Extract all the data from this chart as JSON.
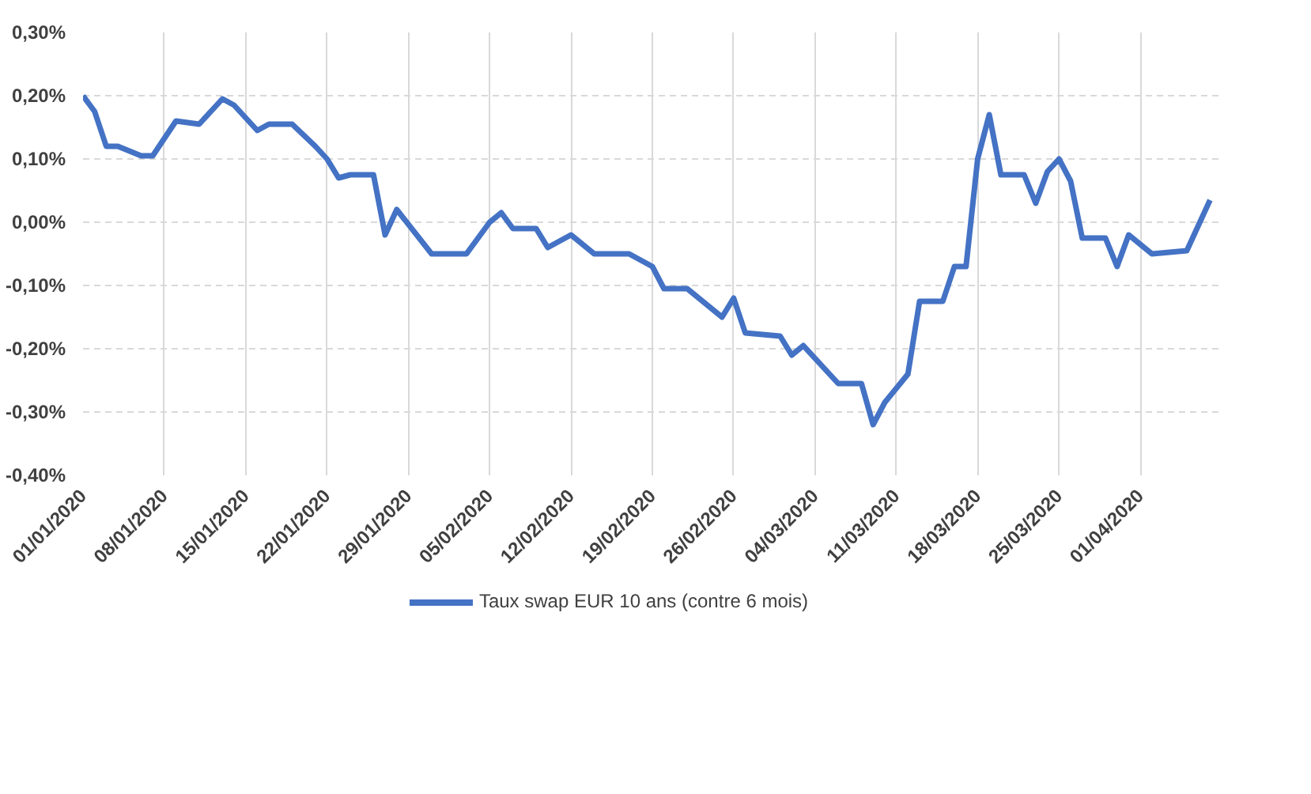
{
  "chart_data": {
    "type": "line",
    "x": [
      "2020-01-01",
      "2020-01-02",
      "2020-01-03",
      "2020-01-04",
      "2020-01-06",
      "2020-01-07",
      "2020-01-09",
      "2020-01-11",
      "2020-01-13",
      "2020-01-14",
      "2020-01-16",
      "2020-01-17",
      "2020-01-19",
      "2020-01-21",
      "2020-01-22",
      "2020-01-23",
      "2020-01-24",
      "2020-01-26",
      "2020-01-27",
      "2020-01-28",
      "2020-01-31",
      "2020-02-03",
      "2020-02-05",
      "2020-02-06",
      "2020-02-07",
      "2020-02-09",
      "2020-02-10",
      "2020-02-12",
      "2020-02-14",
      "2020-02-17",
      "2020-02-19",
      "2020-02-20",
      "2020-02-22",
      "2020-02-25",
      "2020-02-26",
      "2020-02-27",
      "2020-03-01",
      "2020-03-02",
      "2020-03-03",
      "2020-03-06",
      "2020-03-08",
      "2020-03-09",
      "2020-03-10",
      "2020-03-12",
      "2020-03-13",
      "2020-03-15",
      "2020-03-16",
      "2020-03-17",
      "2020-03-18",
      "2020-03-19",
      "2020-03-20",
      "2020-03-22",
      "2020-03-23",
      "2020-03-24",
      "2020-03-25",
      "2020-03-26",
      "2020-03-27",
      "2020-03-29",
      "2020-03-30",
      "2020-03-31",
      "2020-04-02",
      "2020-04-05",
      "2020-04-07"
    ],
    "series": [
      {
        "name": "Taux swap EUR 10 ans (contre 6 mois)",
        "color": "#4472c4",
        "values": [
          0.2,
          0.175,
          0.12,
          0.12,
          0.105,
          0.105,
          0.16,
          0.155,
          0.195,
          0.185,
          0.145,
          0.155,
          0.155,
          0.12,
          0.1,
          0.07,
          0.075,
          0.075,
          -0.02,
          0.02,
          -0.05,
          -0.05,
          0.0,
          0.015,
          -0.01,
          -0.01,
          -0.04,
          -0.02,
          -0.05,
          -0.05,
          -0.07,
          -0.105,
          -0.105,
          -0.15,
          -0.12,
          -0.175,
          -0.18,
          -0.21,
          -0.195,
          -0.255,
          -0.255,
          -0.32,
          -0.285,
          -0.24,
          -0.125,
          -0.125,
          -0.07,
          -0.07,
          0.1,
          0.17,
          0.075,
          0.075,
          0.03,
          0.08,
          0.1,
          0.065,
          -0.025,
          -0.025,
          -0.07,
          -0.02,
          -0.05,
          -0.045,
          0.035
        ]
      }
    ],
    "xlim": [
      "2020-01-01",
      "2020-04-08"
    ],
    "xticks": [
      {
        "value": "2020-01-01",
        "label": "01/01/2020"
      },
      {
        "value": "2020-01-08",
        "label": "08/01/2020"
      },
      {
        "value": "2020-01-15",
        "label": "15/01/2020"
      },
      {
        "value": "2020-01-22",
        "label": "22/01/2020"
      },
      {
        "value": "2020-01-29",
        "label": "29/01/2020"
      },
      {
        "value": "2020-02-05",
        "label": "05/02/2020"
      },
      {
        "value": "2020-02-12",
        "label": "12/02/2020"
      },
      {
        "value": "2020-02-19",
        "label": "19/02/2020"
      },
      {
        "value": "2020-02-26",
        "label": "26/02/2020"
      },
      {
        "value": "2020-03-04",
        "label": "04/03/2020"
      },
      {
        "value": "2020-03-11",
        "label": "11/03/2020"
      },
      {
        "value": "2020-03-18",
        "label": "18/03/2020"
      },
      {
        "value": "2020-03-25",
        "label": "25/03/2020"
      },
      {
        "value": "2020-04-01",
        "label": "01/04/2020"
      }
    ],
    "ylim": [
      -0.4,
      0.3
    ],
    "yticks": [
      {
        "value": -0.4,
        "label": "-0,40%"
      },
      {
        "value": -0.3,
        "label": "-0,30%"
      },
      {
        "value": -0.2,
        "label": "-0,20%"
      },
      {
        "value": -0.1,
        "label": "-0,10%"
      },
      {
        "value": 0,
        "label": "0,00%"
      },
      {
        "value": 0.1,
        "label": "0,10%"
      },
      {
        "value": 0.2,
        "label": "0,20%"
      },
      {
        "value": 0.3,
        "label": "0,30%"
      }
    ],
    "grid": true,
    "legend": "bottom",
    "line_style": "solid"
  }
}
